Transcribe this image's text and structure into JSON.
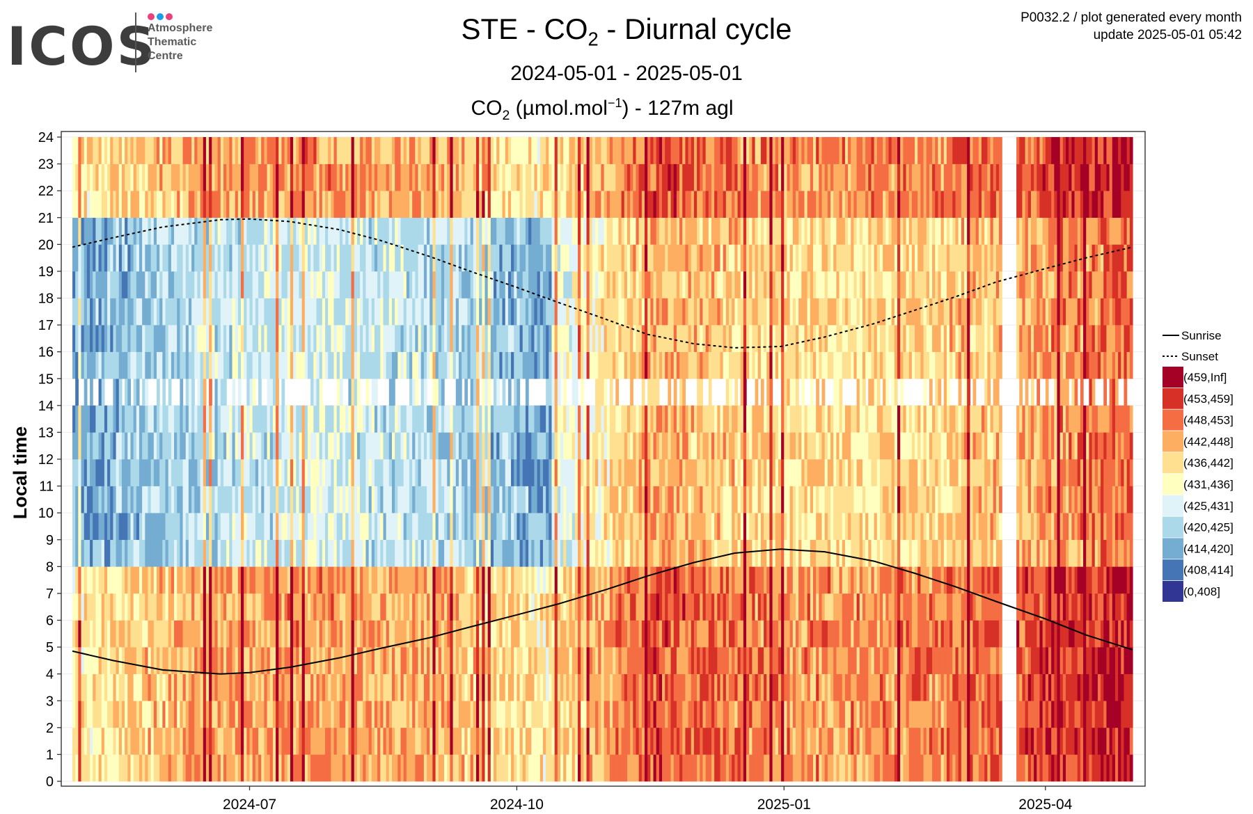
{
  "header": {
    "logo_text": "ICOS",
    "logo_subtitle": [
      "Atmosphere",
      "Thematic",
      "Centre"
    ],
    "logo_dot_colors": [
      "#e8417c",
      "#1e9be9",
      "#e8417c"
    ],
    "title_prefix": "STE - CO",
    "title_sub": "2",
    "title_suffix": " - Diurnal cycle",
    "period": "2024-05-01 - 2025-05-01",
    "meta_line1": "P0032.2 / plot generated every month",
    "meta_line2": "update  2025-05-01 05:42"
  },
  "chart_data": {
    "type": "heatmap",
    "title": "STE - CO2 - Diurnal cycle",
    "subtitle": "CO2 (µmol.mol-1) - 127m agl",
    "subtitle_parts": {
      "a": "CO",
      "sub": "2",
      "b": " (µmol.mol",
      "sup": "−1",
      "c": ") - 127m agl"
    },
    "ylabel": "Local time",
    "xlabel": "",
    "x_range": [
      "2024-05-01",
      "2025-05-01"
    ],
    "ylim": [
      0,
      24
    ],
    "x_ticks": [
      "2024-07",
      "2024-10",
      "2025-01",
      "2025-04"
    ],
    "y_ticks": [
      "0",
      "1",
      "2",
      "3",
      "4",
      "5",
      "6",
      "7",
      "8",
      "9",
      "10",
      "11",
      "12",
      "13",
      "14",
      "15",
      "16",
      "17",
      "18",
      "19",
      "20",
      "21",
      "22",
      "23",
      "24"
    ],
    "grid": true,
    "legend_position": "right",
    "line_legend": [
      {
        "label": "Sunrise",
        "style": "solid"
      },
      {
        "label": "Sunset",
        "style": "dotted"
      }
    ],
    "color_bins": [
      {
        "label": "(459,Inf]",
        "color": "#a50026"
      },
      {
        "label": "(453,459]",
        "color": "#d73027"
      },
      {
        "label": "(448,453]",
        "color": "#f46d43"
      },
      {
        "label": "(442,448]",
        "color": "#fdae61"
      },
      {
        "label": "(436,442]",
        "color": "#fee090"
      },
      {
        "label": "(431,436]",
        "color": "#ffffbf"
      },
      {
        "label": "(425,431]",
        "color": "#e0f3f8"
      },
      {
        "label": "(420,425]",
        "color": "#abd9e9"
      },
      {
        "label": "(414,420]",
        "color": "#74add1"
      },
      {
        "label": "(408,414]",
        "color": "#4575b4"
      },
      {
        "label": "(0,408]",
        "color": "#313695"
      }
    ],
    "sunrise_hours": [
      {
        "date": "2024-05-01",
        "hour": 4.85
      },
      {
        "date": "2024-05-15",
        "hour": 4.5
      },
      {
        "date": "2024-06-01",
        "hour": 4.15
      },
      {
        "date": "2024-06-21",
        "hour": 4.0
      },
      {
        "date": "2024-07-01",
        "hour": 4.05
      },
      {
        "date": "2024-07-15",
        "hour": 4.25
      },
      {
        "date": "2024-08-01",
        "hour": 4.6
      },
      {
        "date": "2024-08-15",
        "hour": 4.95
      },
      {
        "date": "2024-09-01",
        "hour": 5.35
      },
      {
        "date": "2024-09-15",
        "hour": 5.75
      },
      {
        "date": "2024-10-01",
        "hour": 6.2
      },
      {
        "date": "2024-10-15",
        "hour": 6.6
      },
      {
        "date": "2024-11-01",
        "hour": 7.15
      },
      {
        "date": "2024-11-15",
        "hour": 7.65
      },
      {
        "date": "2024-12-01",
        "hour": 8.15
      },
      {
        "date": "2024-12-15",
        "hour": 8.5
      },
      {
        "date": "2024-12-31",
        "hour": 8.65
      },
      {
        "date": "2025-01-15",
        "hour": 8.55
      },
      {
        "date": "2025-02-01",
        "hour": 8.2
      },
      {
        "date": "2025-02-15",
        "hour": 7.75
      },
      {
        "date": "2025-03-01",
        "hour": 7.25
      },
      {
        "date": "2025-03-15",
        "hour": 6.7
      },
      {
        "date": "2025-04-01",
        "hour": 6.05
      },
      {
        "date": "2025-04-15",
        "hour": 5.45
      },
      {
        "date": "2025-05-01",
        "hour": 4.9
      }
    ],
    "sunset_hours": [
      {
        "date": "2024-05-01",
        "hour": 19.9
      },
      {
        "date": "2024-05-15",
        "hour": 20.25
      },
      {
        "date": "2024-06-01",
        "hour": 20.65
      },
      {
        "date": "2024-06-21",
        "hour": 20.92
      },
      {
        "date": "2024-07-01",
        "hour": 20.95
      },
      {
        "date": "2024-07-15",
        "hour": 20.85
      },
      {
        "date": "2024-08-01",
        "hour": 20.55
      },
      {
        "date": "2024-08-15",
        "hour": 20.15
      },
      {
        "date": "2024-09-01",
        "hour": 19.55
      },
      {
        "date": "2024-09-15",
        "hour": 19.0
      },
      {
        "date": "2024-10-01",
        "hour": 18.4
      },
      {
        "date": "2024-10-15",
        "hour": 17.85
      },
      {
        "date": "2024-11-01",
        "hour": 17.2
      },
      {
        "date": "2024-11-15",
        "hour": 16.65
      },
      {
        "date": "2024-12-01",
        "hour": 16.3
      },
      {
        "date": "2024-12-15",
        "hour": 16.15
      },
      {
        "date": "2024-12-31",
        "hour": 16.2
      },
      {
        "date": "2025-01-15",
        "hour": 16.55
      },
      {
        "date": "2025-02-01",
        "hour": 17.05
      },
      {
        "date": "2025-02-15",
        "hour": 17.55
      },
      {
        "date": "2025-03-01",
        "hour": 18.05
      },
      {
        "date": "2025-03-15",
        "hour": 18.6
      },
      {
        "date": "2025-04-01",
        "hour": 19.1
      },
      {
        "date": "2025-04-15",
        "hour": 19.5
      },
      {
        "date": "2025-05-01",
        "hour": 19.9
      }
    ]
  }
}
